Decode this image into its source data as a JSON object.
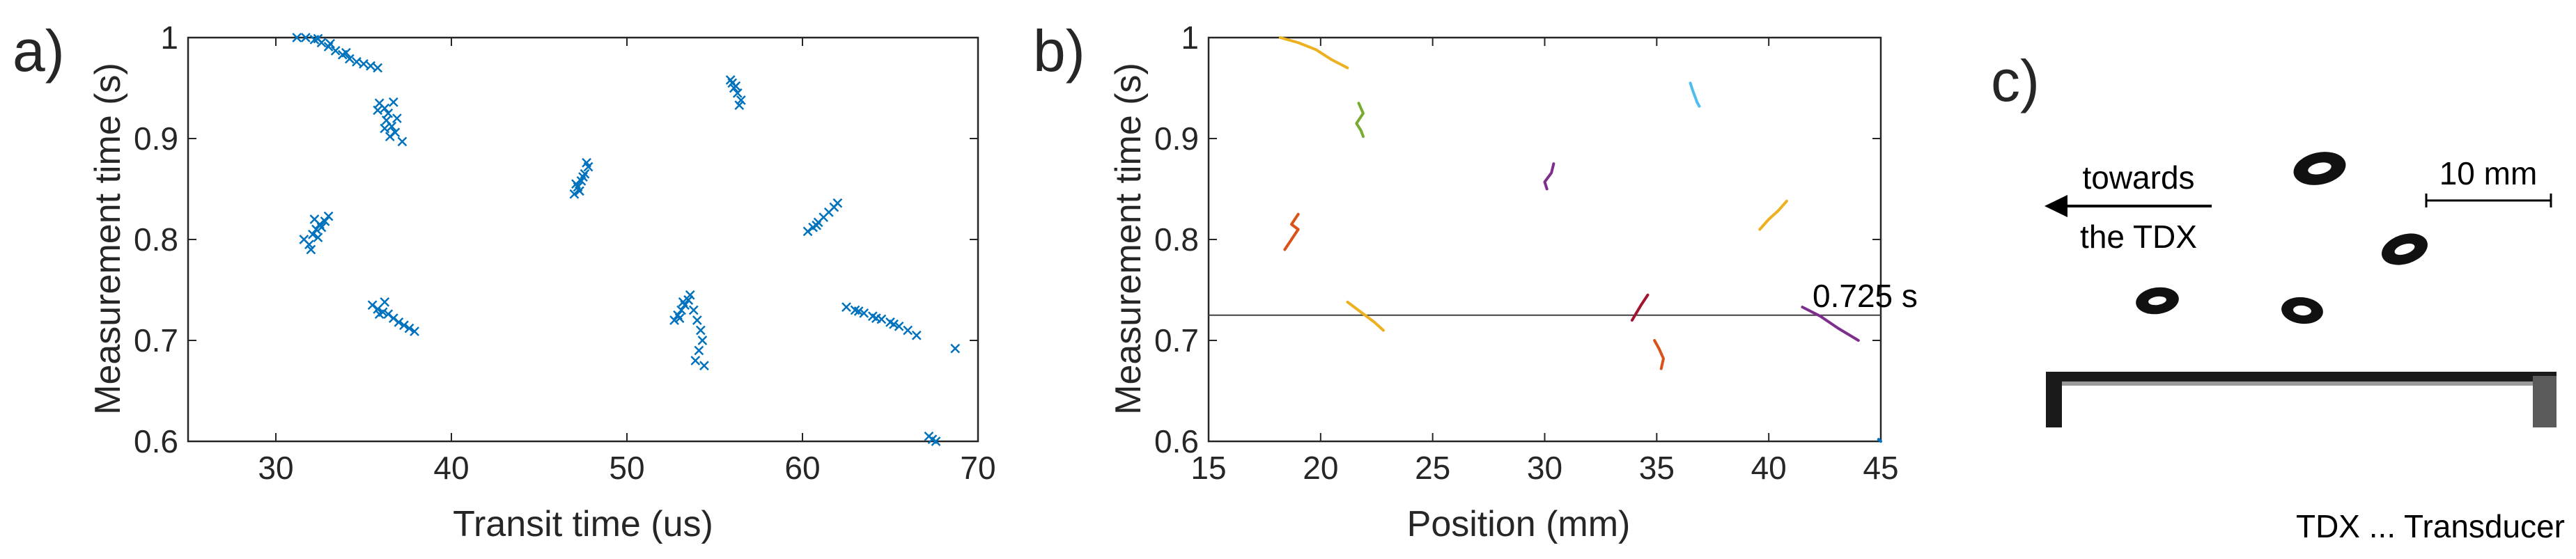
{
  "panel_labels": {
    "a": "a)",
    "b": "b)",
    "c": "c)"
  },
  "chart_data": [
    {
      "type": "scatter",
      "xlabel": "Transit time (us)",
      "ylabel": "Measurement time (s)",
      "xlim": [
        25,
        70
      ],
      "ylim": [
        0.6,
        1.0
      ],
      "x_ticks": [
        30,
        40,
        50,
        60,
        70
      ],
      "y_ticks": [
        0.6,
        0.7,
        0.8,
        0.9,
        1
      ],
      "grid": false,
      "marker": "x",
      "color": "#0072BD",
      "series": [
        {
          "x": [
            31.2,
            31.7,
            32.2,
            32.6,
            33.0,
            33.4,
            33.8,
            34.2,
            34.6,
            35.0,
            35.4,
            35.8,
            32.4,
            33.1,
            34.0
          ],
          "y": [
            1.0,
            1.0,
            0.998,
            0.995,
            0.991,
            0.987,
            0.983,
            0.979,
            0.976,
            0.974,
            0.972,
            0.97,
            0.999,
            0.994,
            0.985
          ]
        },
        {
          "x": [
            35.9,
            36.2,
            36.4,
            36.3,
            36.6,
            36.8,
            36.5,
            36.2,
            35.8,
            36.9,
            37.2,
            36.7
          ],
          "y": [
            0.935,
            0.93,
            0.925,
            0.918,
            0.912,
            0.906,
            0.902,
            0.91,
            0.928,
            0.92,
            0.897,
            0.936
          ]
        },
        {
          "x": [
            31.6,
            31.9,
            32.1,
            32.3,
            32.5,
            32.2,
            32.0,
            32.6,
            32.8,
            33.0,
            32.4
          ],
          "y": [
            0.8,
            0.795,
            0.805,
            0.81,
            0.815,
            0.82,
            0.79,
            0.812,
            0.818,
            0.823,
            0.802
          ]
        },
        {
          "x": [
            35.5,
            35.8,
            36.1,
            36.4,
            36.7,
            37.0,
            37.3,
            37.6,
            37.9,
            36.2,
            35.9
          ],
          "y": [
            0.735,
            0.731,
            0.728,
            0.726,
            0.722,
            0.718,
            0.715,
            0.712,
            0.709,
            0.738,
            0.726
          ]
        },
        {
          "x": [
            47.0,
            47.2,
            47.4,
            47.6,
            47.8,
            47.3,
            47.5,
            47.1,
            47.7
          ],
          "y": [
            0.845,
            0.852,
            0.858,
            0.865,
            0.872,
            0.848,
            0.862,
            0.855,
            0.876
          ]
        },
        {
          "x": [
            55.9,
            56.1,
            56.3,
            56.5,
            56.2,
            56.4,
            56.0
          ],
          "y": [
            0.958,
            0.95,
            0.945,
            0.938,
            0.952,
            0.933,
            0.955
          ]
        },
        {
          "x": [
            52.7,
            52.9,
            53.1,
            53.3,
            53.5,
            53.6,
            53.0,
            53.2
          ],
          "y": [
            0.72,
            0.725,
            0.73,
            0.735,
            0.74,
            0.745,
            0.722,
            0.738
          ]
        },
        {
          "x": [
            53.5,
            53.8,
            54.0,
            54.2,
            54.3,
            54.1,
            53.9,
            54.4
          ],
          "y": [
            0.74,
            0.73,
            0.72,
            0.71,
            0.7,
            0.69,
            0.68,
            0.675
          ]
        },
        {
          "x": [
            60.3,
            60.6,
            60.9,
            61.2,
            61.5,
            61.8,
            62.0,
            60.8
          ],
          "y": [
            0.808,
            0.812,
            0.817,
            0.822,
            0.827,
            0.832,
            0.836,
            0.814
          ]
        },
        {
          "x": [
            62.5,
            63.0,
            63.5,
            64.0,
            64.5,
            65.0,
            65.5,
            66.0,
            66.5,
            63.2,
            64.2,
            65.2,
            68.7
          ],
          "y": [
            0.733,
            0.73,
            0.727,
            0.724,
            0.721,
            0.718,
            0.714,
            0.71,
            0.705,
            0.729,
            0.722,
            0.716,
            0.692
          ]
        },
        {
          "x": [
            67.2,
            67.4,
            67.6
          ],
          "y": [
            0.605,
            0.602,
            0.6
          ]
        }
      ]
    },
    {
      "type": "line",
      "xlabel": "Position (mm)",
      "ylabel": "Measurement time (s)",
      "xlim": [
        15,
        45
      ],
      "ylim": [
        0.6,
        1.0
      ],
      "x_ticks": [
        15,
        20,
        25,
        30,
        35,
        40,
        45
      ],
      "y_ticks": [
        0.6,
        0.7,
        0.8,
        0.9,
        1
      ],
      "grid": false,
      "reference_line": {
        "y": 0.725,
        "label": "0.725 s",
        "color": "#404040"
      },
      "series": [
        {
          "color": "#EDB120",
          "x": [
            18.2,
            19.0,
            19.8,
            20.5,
            21.2
          ],
          "y": [
            1.0,
            0.995,
            0.988,
            0.978,
            0.97
          ]
        },
        {
          "color": "#77AC30",
          "x": [
            21.7,
            21.9,
            21.6,
            21.8,
            21.9
          ],
          "y": [
            0.935,
            0.925,
            0.915,
            0.908,
            0.902
          ]
        },
        {
          "color": "#D95319",
          "x": [
            18.4,
            18.7,
            19.0,
            18.7,
            19.0
          ],
          "y": [
            0.79,
            0.8,
            0.81,
            0.815,
            0.825
          ]
        },
        {
          "color": "#EDB120",
          "x": [
            21.2,
            21.8,
            22.4,
            22.8
          ],
          "y": [
            0.738,
            0.728,
            0.718,
            0.71
          ]
        },
        {
          "color": "#7E2F8E",
          "x": [
            30.1,
            30.0,
            30.3,
            30.4
          ],
          "y": [
            0.85,
            0.857,
            0.866,
            0.875
          ]
        },
        {
          "color": "#4DBEEE",
          "x": [
            36.5,
            36.6,
            36.7,
            36.8,
            36.9
          ],
          "y": [
            0.955,
            0.948,
            0.942,
            0.936,
            0.932
          ]
        },
        {
          "color": "#A2142F",
          "x": [
            33.9,
            34.3,
            34.6
          ],
          "y": [
            0.72,
            0.735,
            0.745
          ]
        },
        {
          "color": "#D95319",
          "x": [
            34.9,
            35.1,
            35.3,
            35.2
          ],
          "y": [
            0.7,
            0.692,
            0.682,
            0.672
          ]
        },
        {
          "color": "#EDB120",
          "x": [
            39.6,
            40.0,
            40.4,
            40.8
          ],
          "y": [
            0.81,
            0.82,
            0.828,
            0.838
          ]
        },
        {
          "color": "#7E2F8E",
          "x": [
            41.5,
            42.3,
            43.1,
            44.0
          ],
          "y": [
            0.733,
            0.724,
            0.712,
            0.7
          ]
        },
        {
          "color": "#0072BD",
          "x": [
            44.9,
            45.0
          ],
          "y": [
            0.602,
            0.6
          ]
        }
      ]
    }
  ],
  "panel_c": {
    "direction_label_line1": "towards",
    "direction_label_line2": "the TDX",
    "scale_label": "10 mm",
    "caption": "TDX ... Transducer"
  }
}
